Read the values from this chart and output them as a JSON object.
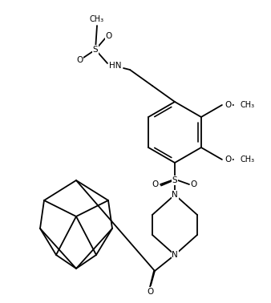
{
  "figsize": [
    3.38,
    3.78
  ],
  "dpi": 100,
  "background_color": "#ffffff",
  "line_color": "#000000",
  "line_width": 1.2,
  "font_size": 7.5,
  "xlim": [
    0,
    338
  ],
  "ylim": [
    0,
    378
  ]
}
